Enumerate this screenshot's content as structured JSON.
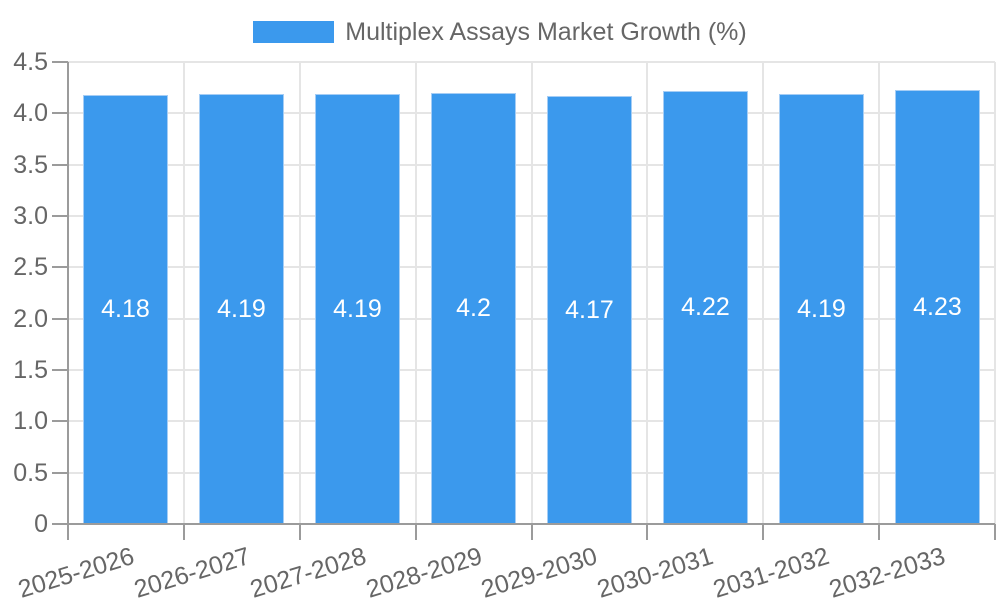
{
  "legend": {
    "label": "Multiplex Assays Market Growth (%)",
    "swatch_color": "#3B99ED"
  },
  "chart_data": {
    "type": "bar",
    "title": "Multiplex Assays Market Growth (%)",
    "series_name": "Multiplex Assays Market Growth (%)",
    "categories": [
      "2025-2026",
      "2026-2027",
      "2027-2028",
      "2028-2029",
      "2029-2030",
      "2030-2031",
      "2031-2032",
      "2032-2033"
    ],
    "values": [
      4.18,
      4.19,
      4.19,
      4.2,
      4.17,
      4.22,
      4.19,
      4.23
    ],
    "value_labels": [
      "4.18",
      "4.19",
      "4.19",
      "4.2",
      "4.17",
      "4.22",
      "4.19",
      "4.23"
    ],
    "xlabel": "",
    "ylabel": "",
    "ylim": [
      0,
      4.5
    ],
    "ytick_step": 0.5,
    "ytick_labels": [
      "0",
      "0.5",
      "1.0",
      "1.5",
      "2.0",
      "2.5",
      "3.0",
      "3.5",
      "4.0",
      "4.5"
    ],
    "grid": true,
    "legend_position": "top",
    "colors": {
      "bar_fill": "#3B99ED",
      "bar_border": "#A5CDF5",
      "grid_line": "#E5E5E5",
      "axis_line": "#9B9B9B",
      "tick_label": "#666666",
      "legend_text": "#666666",
      "value_label": "#FFFFFF"
    }
  }
}
